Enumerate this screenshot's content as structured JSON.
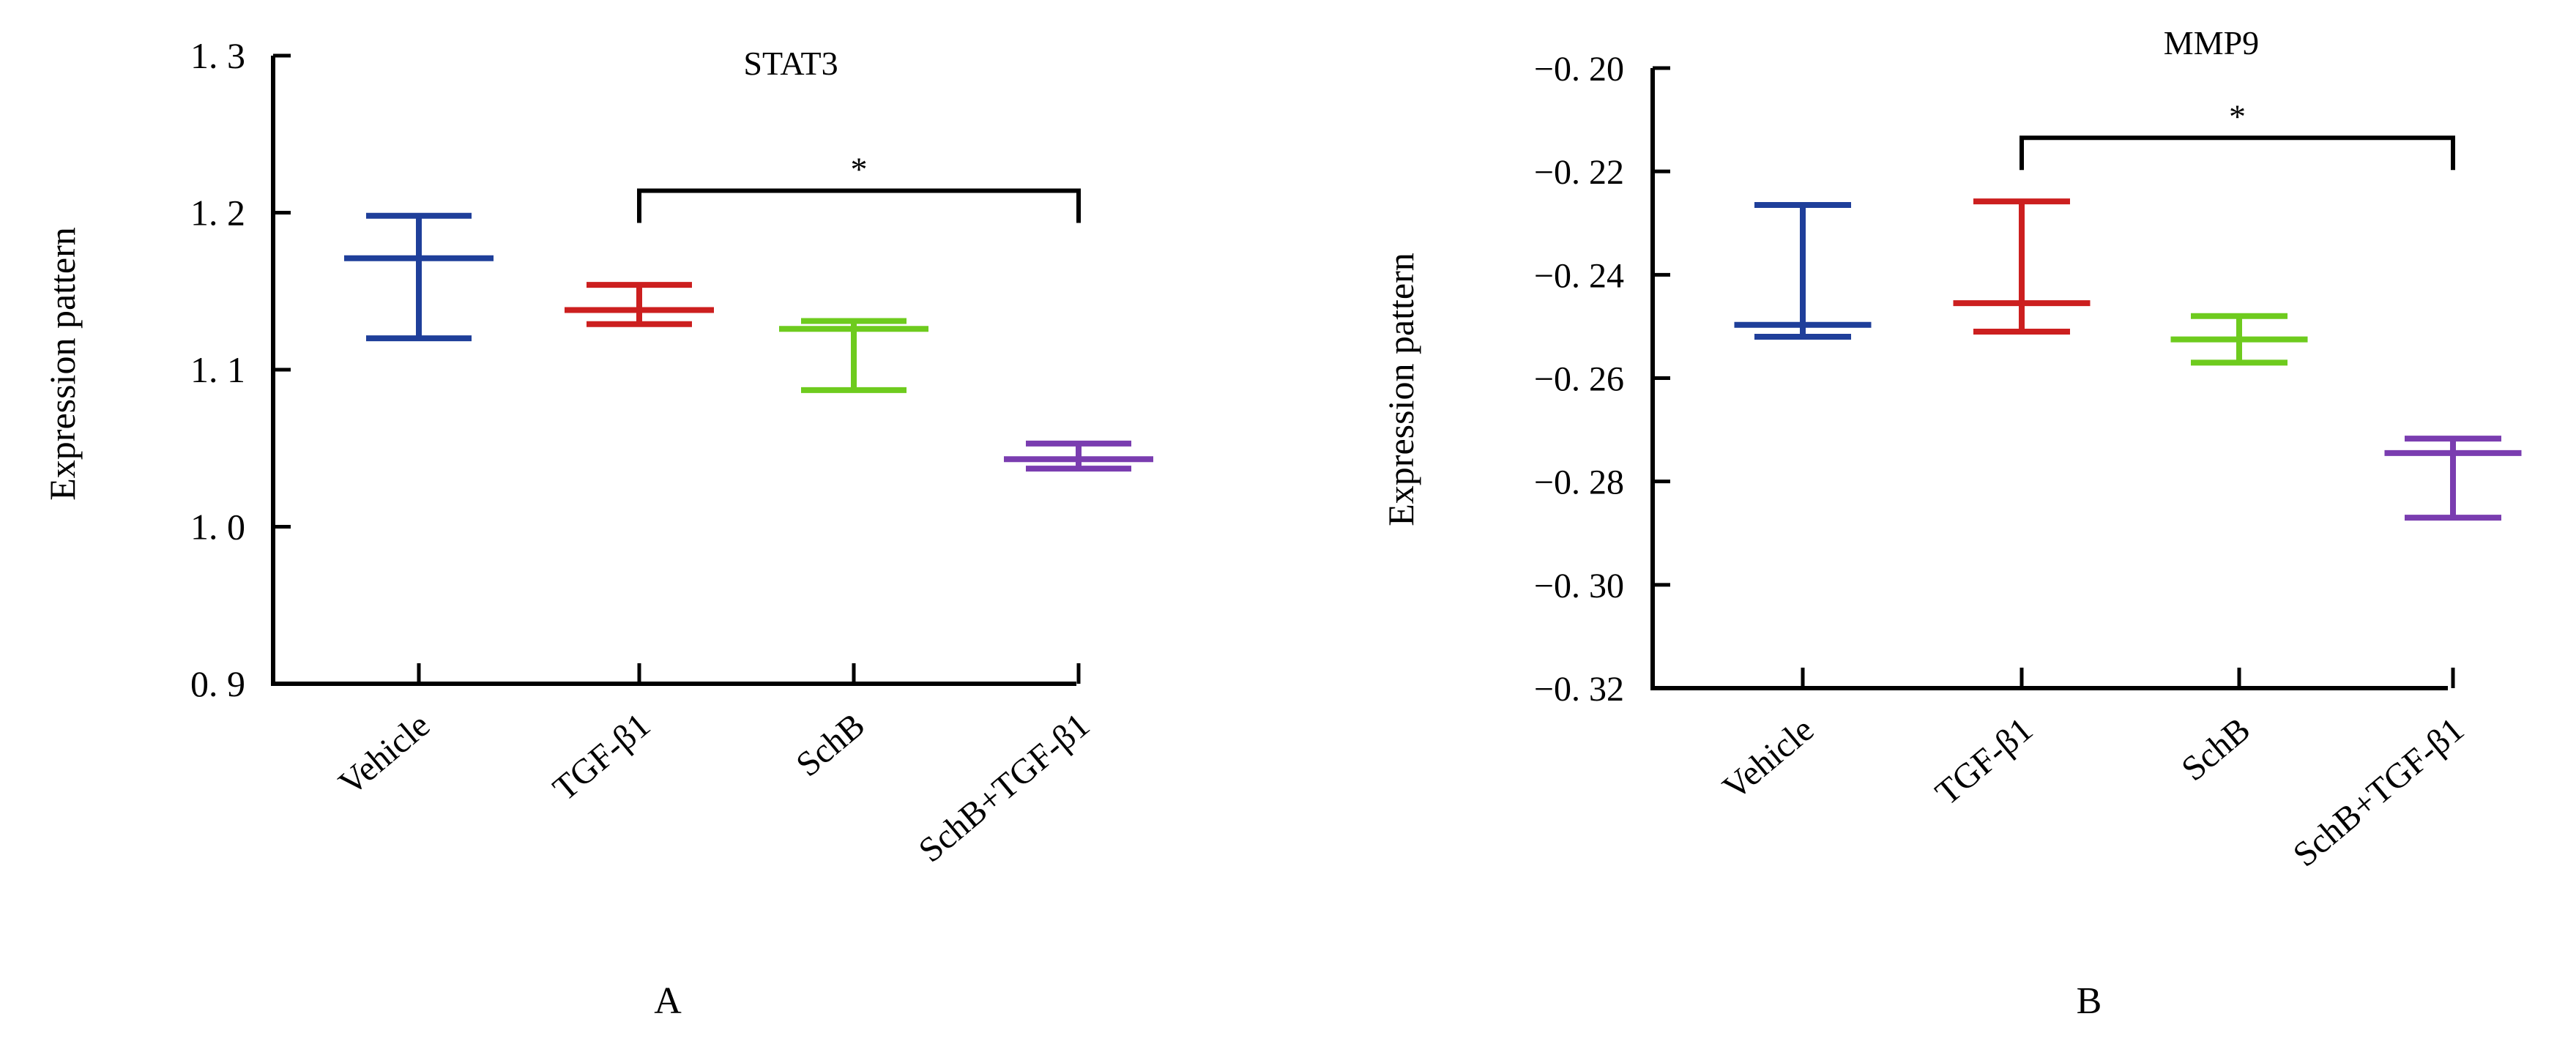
{
  "chart_data": [
    {
      "type": "errorbar",
      "panel_label": "A",
      "title": "STAT3",
      "ylabel": "Expression pattern",
      "xlabel": "",
      "ylim": [
        0.9,
        1.3
      ],
      "yticks": [
        "1. 3",
        "1. 2",
        "1. 1",
        "1. 0",
        "0. 9"
      ],
      "ytick_values": [
        1.3,
        1.2,
        1.1,
        1.0,
        0.9
      ],
      "categories": [
        "Vehicle",
        "TGF-β1",
        "SchB",
        "SchB+TGF-β1"
      ],
      "colors": [
        "#1f3f9a",
        "#cc1f1f",
        "#6ecb1e",
        "#7a3db0"
      ],
      "mean": [
        1.171,
        1.138,
        1.126,
        1.043
      ],
      "upper": [
        1.198,
        1.154,
        1.131,
        1.053
      ],
      "lower": [
        1.12,
        1.129,
        1.087,
        1.037
      ],
      "annotations": [
        {
          "from": 1,
          "to": 3,
          "at": 1.214,
          "text": "*"
        }
      ]
    },
    {
      "type": "errorbar",
      "panel_label": "B",
      "title": "MMP9",
      "ylabel": "Expression pattern",
      "xlabel": "",
      "ylim": [
        -0.32,
        -0.2
      ],
      "yticks": [
        "−0. 20",
        "−0. 22",
        "−0. 24",
        "−0. 26",
        "−0. 28",
        "−0. 30",
        "−0. 32"
      ],
      "ytick_values": [
        -0.2,
        -0.22,
        -0.24,
        -0.26,
        -0.28,
        -0.3,
        -0.32
      ],
      "categories": [
        "Vehicle",
        "TGF-β1",
        "SchB",
        "SchB+TGF-β1"
      ],
      "colors": [
        "#1f3f9a",
        "#cc1f1f",
        "#6ecb1e",
        "#7a3db0"
      ],
      "mean": [
        -0.2497,
        -0.2455,
        -0.2525,
        -0.2745
      ],
      "upper": [
        -0.2265,
        -0.2258,
        -0.248,
        -0.2717
      ],
      "lower": [
        -0.252,
        -0.251,
        -0.257,
        -0.287
      ],
      "annotations": [
        {
          "from": 1,
          "to": 3,
          "at": -0.2135,
          "text": "*"
        }
      ]
    }
  ]
}
